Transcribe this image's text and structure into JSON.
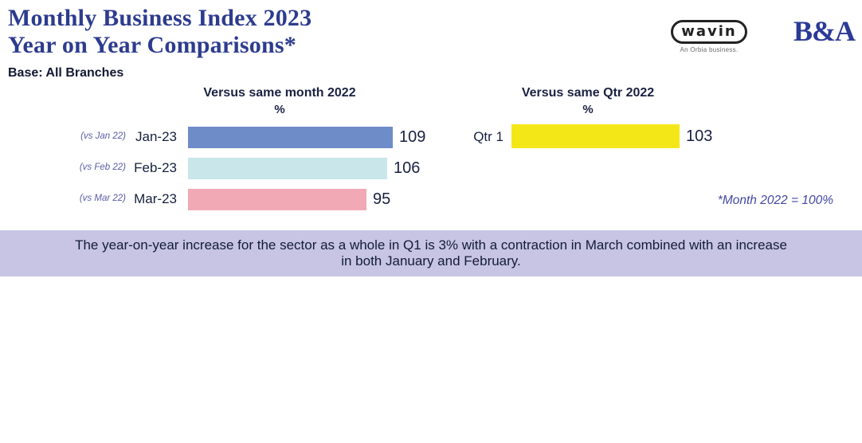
{
  "title": {
    "line1": "Monthly Business Index 2023",
    "line2": "Year on Year Comparisons*"
  },
  "subtitle": "Base: All Branches",
  "logos": {
    "wavin_text": "wavin",
    "wavin_tagline": "An Orbia business.",
    "ba_text": "B&A"
  },
  "chart_data": [
    {
      "type": "bar",
      "orientation": "horizontal",
      "title": "Versus same month 2022",
      "unit_label": "%",
      "categories": [
        "Jan-23",
        "Feb-23",
        "Mar-23"
      ],
      "sub_labels": [
        "(vs Jan 22)",
        "(vs Feb 22)",
        "(vs Mar 22)"
      ],
      "values": [
        109,
        106,
        95
      ],
      "bar_colors": [
        "#6e8cc8",
        "#c9e6ea",
        "#f2a9b6"
      ],
      "baseline_note": "Month 2022 = 100%",
      "xlim": [
        0,
        120
      ],
      "grid": false,
      "legend": "none"
    },
    {
      "type": "bar",
      "orientation": "horizontal",
      "title": "Versus same Qtr 2022",
      "unit_label": "%",
      "categories": [
        "Qtr 1"
      ],
      "values": [
        103
      ],
      "bar_colors": [
        "#f4e718"
      ],
      "xlim": [
        0,
        120
      ],
      "grid": false,
      "legend": "none"
    }
  ],
  "footnote": "*Month 2022 = 100%",
  "banner": {
    "text": "The year-on-year increase for the sector as a whole in Q1 is 3% with a contraction in March combined with an increase in both January and February.",
    "bg_color": "#c7c5e3"
  },
  "colors": {
    "title_navy": "#2d3c8e",
    "text_navy": "#15203c",
    "sub_label_purple": "#5a5ea9",
    "footnote_purple": "#4347a0"
  }
}
